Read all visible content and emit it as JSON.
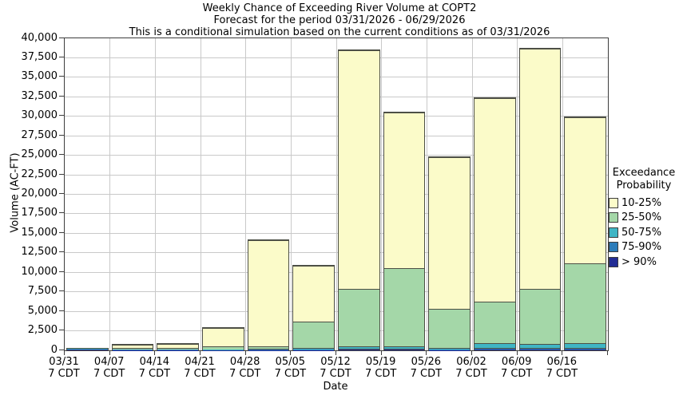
{
  "title": {
    "line1": "Weekly Chance of Exceeding River Volume at COPT2",
    "line2": "Forecast for the period 03/31/2026 - 06/29/2026",
    "line3": "This is a conditional simulation based on the current conditions as of 03/31/2026"
  },
  "chart_data": {
    "type": "bar",
    "stacked": true,
    "xlabel": "Date",
    "ylabel": "Volume (AC-FT)",
    "ylim": [
      0,
      40000
    ],
    "ytick_step": 2500,
    "grid": true,
    "legend_position": "right",
    "categories": [
      "03/31",
      "04/07",
      "04/14",
      "04/21",
      "04/28",
      "05/05",
      "05/12",
      "05/19",
      "05/26",
      "06/02",
      "06/09",
      "06/16"
    ],
    "tick_time_suffix": "7 CDT",
    "series": [
      {
        "name": "> 90%",
        "color": "#222C94",
        "values": [
          60,
          30,
          30,
          20,
          20,
          30,
          60,
          60,
          50,
          90,
          90,
          90
        ]
      },
      {
        "name": "75-90%",
        "color": "#2C7CBA",
        "values": [
          50,
          30,
          30,
          30,
          40,
          60,
          80,
          80,
          70,
          160,
          160,
          160
        ]
      },
      {
        "name": "50-75%",
        "color": "#3FB5C5",
        "values": [
          50,
          40,
          40,
          60,
          80,
          130,
          140,
          140,
          110,
          430,
          370,
          450
        ]
      },
      {
        "name": "25-50%",
        "color": "#A4D7A8",
        "values": [
          40,
          80,
          100,
          290,
          200,
          3280,
          7320,
          9920,
          4920,
          5220,
          6980,
          10100
        ]
      },
      {
        "name": "10-25%",
        "color": "#FBFBC9",
        "values": [
          50,
          300,
          400,
          2300,
          13460,
          7000,
          30500,
          19900,
          19350,
          26000,
          30700,
          18700
        ]
      }
    ],
    "bar_totals": [
      250,
      480,
      600,
      2700,
      13800,
      10500,
      38100,
      30100,
      24500,
      31900,
      38300,
      29500
    ]
  },
  "legend": {
    "title_line1": "Exceedance",
    "title_line2": "Probability"
  },
  "colors": {
    "bar_border": "#4D4F46",
    "gridline": "#C9C9C9",
    "axis": "#3D3D3D",
    "background": "#FFFFFF",
    "text": "#000000"
  }
}
